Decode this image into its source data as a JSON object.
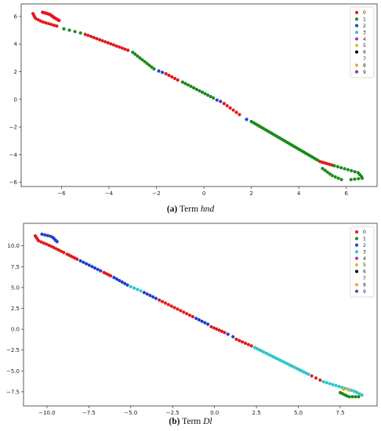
{
  "captions": [
    {
      "tag": "(a)",
      "text_prefix": "Term ",
      "term": "hnd"
    },
    {
      "tag": "(b)",
      "text_prefix": "Term ",
      "term": "Dl"
    }
  ],
  "colors": {
    "0": "#e41a1c",
    "1": "#1a8a1a",
    "2": "#1f3fd0",
    "3": "#2fc6c6",
    "4": "#b030c0",
    "5": "#e0c020",
    "6": "#000000",
    "7": "#ffffff",
    "8": "#f5a623",
    "9": "#7a3d99"
  },
  "chart_data": [
    {
      "type": "scatter",
      "title": "",
      "xlabel": "",
      "ylabel": "",
      "xlim": [
        -7.7,
        7.3
      ],
      "ylim": [
        -6.3,
        6.9
      ],
      "xticks": [
        -6,
        -4,
        -2,
        0,
        2,
        4,
        6
      ],
      "yticks": [
        -6,
        -4,
        -2,
        0,
        2,
        4,
        6
      ],
      "legend": {
        "position": "top-right",
        "entries": [
          "0",
          "1",
          "2",
          "3",
          "4",
          "5",
          "6",
          "7",
          "8",
          "9"
        ]
      },
      "segments": [
        {
          "class": "0",
          "count": 22,
          "path": [
            [
              -6.8,
              6.3
            ],
            [
              -6.5,
              6.15
            ],
            [
              -6.3,
              5.9
            ],
            [
              -6.1,
              5.7
            ]
          ]
        },
        {
          "class": "0",
          "count": 12,
          "path": [
            [
              -7.2,
              6.2
            ],
            [
              -7.1,
              5.85
            ],
            [
              -6.8,
              5.6
            ],
            [
              -6.2,
              5.3
            ]
          ]
        },
        {
          "class": "1",
          "count": 4,
          "path": [
            [
              -5.9,
              5.1
            ],
            [
              -5.2,
              4.8
            ]
          ]
        },
        {
          "class": "0",
          "count": 16,
          "path": [
            [
              -5.0,
              4.7
            ],
            [
              -3.2,
              3.55
            ]
          ]
        },
        {
          "class": "1",
          "count": 10,
          "path": [
            [
              -3.0,
              3.4
            ],
            [
              -2.1,
              2.2
            ]
          ]
        },
        {
          "class": "2",
          "count": 2,
          "path": [
            [
              -1.9,
              2.05
            ],
            [
              -1.75,
              1.95
            ]
          ]
        },
        {
          "class": "0",
          "count": 5,
          "path": [
            [
              -1.6,
              1.85
            ],
            [
              -1.1,
              1.4
            ]
          ]
        },
        {
          "class": "1",
          "count": 12,
          "path": [
            [
              -0.9,
              1.25
            ],
            [
              0.4,
              0.1
            ]
          ]
        },
        {
          "class": "2",
          "count": 2,
          "path": [
            [
              0.55,
              -0.05
            ],
            [
              0.7,
              -0.15
            ]
          ]
        },
        {
          "class": "0",
          "count": 6,
          "path": [
            [
              0.85,
              -0.3
            ],
            [
              1.5,
              -1.1
            ]
          ]
        },
        {
          "class": "2",
          "count": 1,
          "path": [
            [
              1.8,
              -1.45
            ],
            [
              1.8,
              -1.45
            ]
          ]
        },
        {
          "class": "1",
          "count": 34,
          "path": [
            [
              2.0,
              -1.6
            ],
            [
              4.8,
              -4.4
            ]
          ]
        },
        {
          "class": "0",
          "count": 6,
          "path": [
            [
              4.9,
              -4.5
            ],
            [
              5.4,
              -4.75
            ]
          ]
        },
        {
          "class": "1",
          "count": 14,
          "path": [
            [
              5.5,
              -4.8
            ],
            [
              6.5,
              -5.3
            ],
            [
              6.7,
              -5.7
            ],
            [
              6.2,
              -5.8
            ]
          ]
        },
        {
          "class": "1",
          "count": 8,
          "path": [
            [
              5.8,
              -5.8
            ],
            [
              5.4,
              -5.5
            ],
            [
              5.0,
              -5.0
            ]
          ]
        }
      ]
    },
    {
      "type": "scatter",
      "title": "",
      "xlabel": "",
      "ylabel": "",
      "xlim": [
        -11.4,
        9.7
      ],
      "ylim": [
        -9.2,
        12.7
      ],
      "xticks": [
        -10.0,
        -7.5,
        -5.0,
        -2.5,
        0.0,
        2.5,
        5.0,
        7.5
      ],
      "yticks": [
        -7.5,
        -5.0,
        -2.5,
        0.0,
        2.5,
        5.0,
        7.5,
        10.0
      ],
      "legend": {
        "position": "top-right",
        "entries": [
          "0",
          "1",
          "2",
          "3",
          "4",
          "5",
          "6",
          "7",
          "8",
          "9"
        ]
      },
      "segments": [
        {
          "class": "0",
          "count": 14,
          "path": [
            [
              -10.7,
              11.2
            ],
            [
              -10.5,
              10.6
            ],
            [
              -9.8,
              10.0
            ],
            [
              -9.0,
              9.2
            ]
          ]
        },
        {
          "class": "2",
          "count": 8,
          "path": [
            [
              -10.3,
              11.4
            ],
            [
              -9.7,
              11.1
            ],
            [
              -9.4,
              10.5
            ]
          ]
        },
        {
          "class": "0",
          "count": 6,
          "path": [
            [
              -8.8,
              9.0
            ],
            [
              -8.2,
              8.4
            ]
          ]
        },
        {
          "class": "2",
          "count": 8,
          "path": [
            [
              -8.0,
              8.2
            ],
            [
              -6.8,
              7.0
            ]
          ]
        },
        {
          "class": "0",
          "count": 4,
          "path": [
            [
              -6.6,
              6.8
            ],
            [
              -6.2,
              6.4
            ]
          ]
        },
        {
          "class": "2",
          "count": 6,
          "path": [
            [
              -6.0,
              6.2
            ],
            [
              -5.2,
              5.3
            ]
          ]
        },
        {
          "class": "3",
          "count": 4,
          "path": [
            [
              -5.0,
              5.1
            ],
            [
              -4.4,
              4.6
            ]
          ]
        },
        {
          "class": "2",
          "count": 5,
          "path": [
            [
              -4.2,
              4.4
            ],
            [
              -3.5,
              3.7
            ]
          ]
        },
        {
          "class": "0",
          "count": 12,
          "path": [
            [
              -3.3,
              3.5
            ],
            [
              -1.3,
              1.5
            ]
          ]
        },
        {
          "class": "2",
          "count": 5,
          "path": [
            [
              -1.1,
              1.3
            ],
            [
              -0.4,
              0.6
            ]
          ]
        },
        {
          "class": "0",
          "count": 6,
          "path": [
            [
              -0.2,
              0.3
            ],
            [
              0.6,
              -0.4
            ]
          ]
        },
        {
          "class": "2",
          "count": 2,
          "path": [
            [
              0.8,
              -0.6
            ],
            [
              1.1,
              -0.9
            ]
          ]
        },
        {
          "class": "0",
          "count": 6,
          "path": [
            [
              1.3,
              -1.2
            ],
            [
              2.2,
              -2.0
            ]
          ]
        },
        {
          "class": "3",
          "count": 24,
          "path": [
            [
              2.4,
              -2.2
            ],
            [
              5.6,
              -5.4
            ]
          ]
        },
        {
          "class": "0",
          "count": 3,
          "path": [
            [
              5.8,
              -5.6
            ],
            [
              6.3,
              -6.1
            ]
          ]
        },
        {
          "class": "3",
          "count": 14,
          "path": [
            [
              6.5,
              -6.3
            ],
            [
              8.3,
              -7.4
            ],
            [
              8.8,
              -7.9
            ]
          ]
        },
        {
          "class": "8",
          "count": 2,
          "path": [
            [
              7.7,
              -7.2
            ],
            [
              8.0,
              -7.3
            ]
          ]
        },
        {
          "class": "1",
          "count": 8,
          "path": [
            [
              8.6,
              -8.1
            ],
            [
              8.0,
              -8.1
            ],
            [
              7.5,
              -7.6
            ]
          ]
        }
      ]
    }
  ]
}
